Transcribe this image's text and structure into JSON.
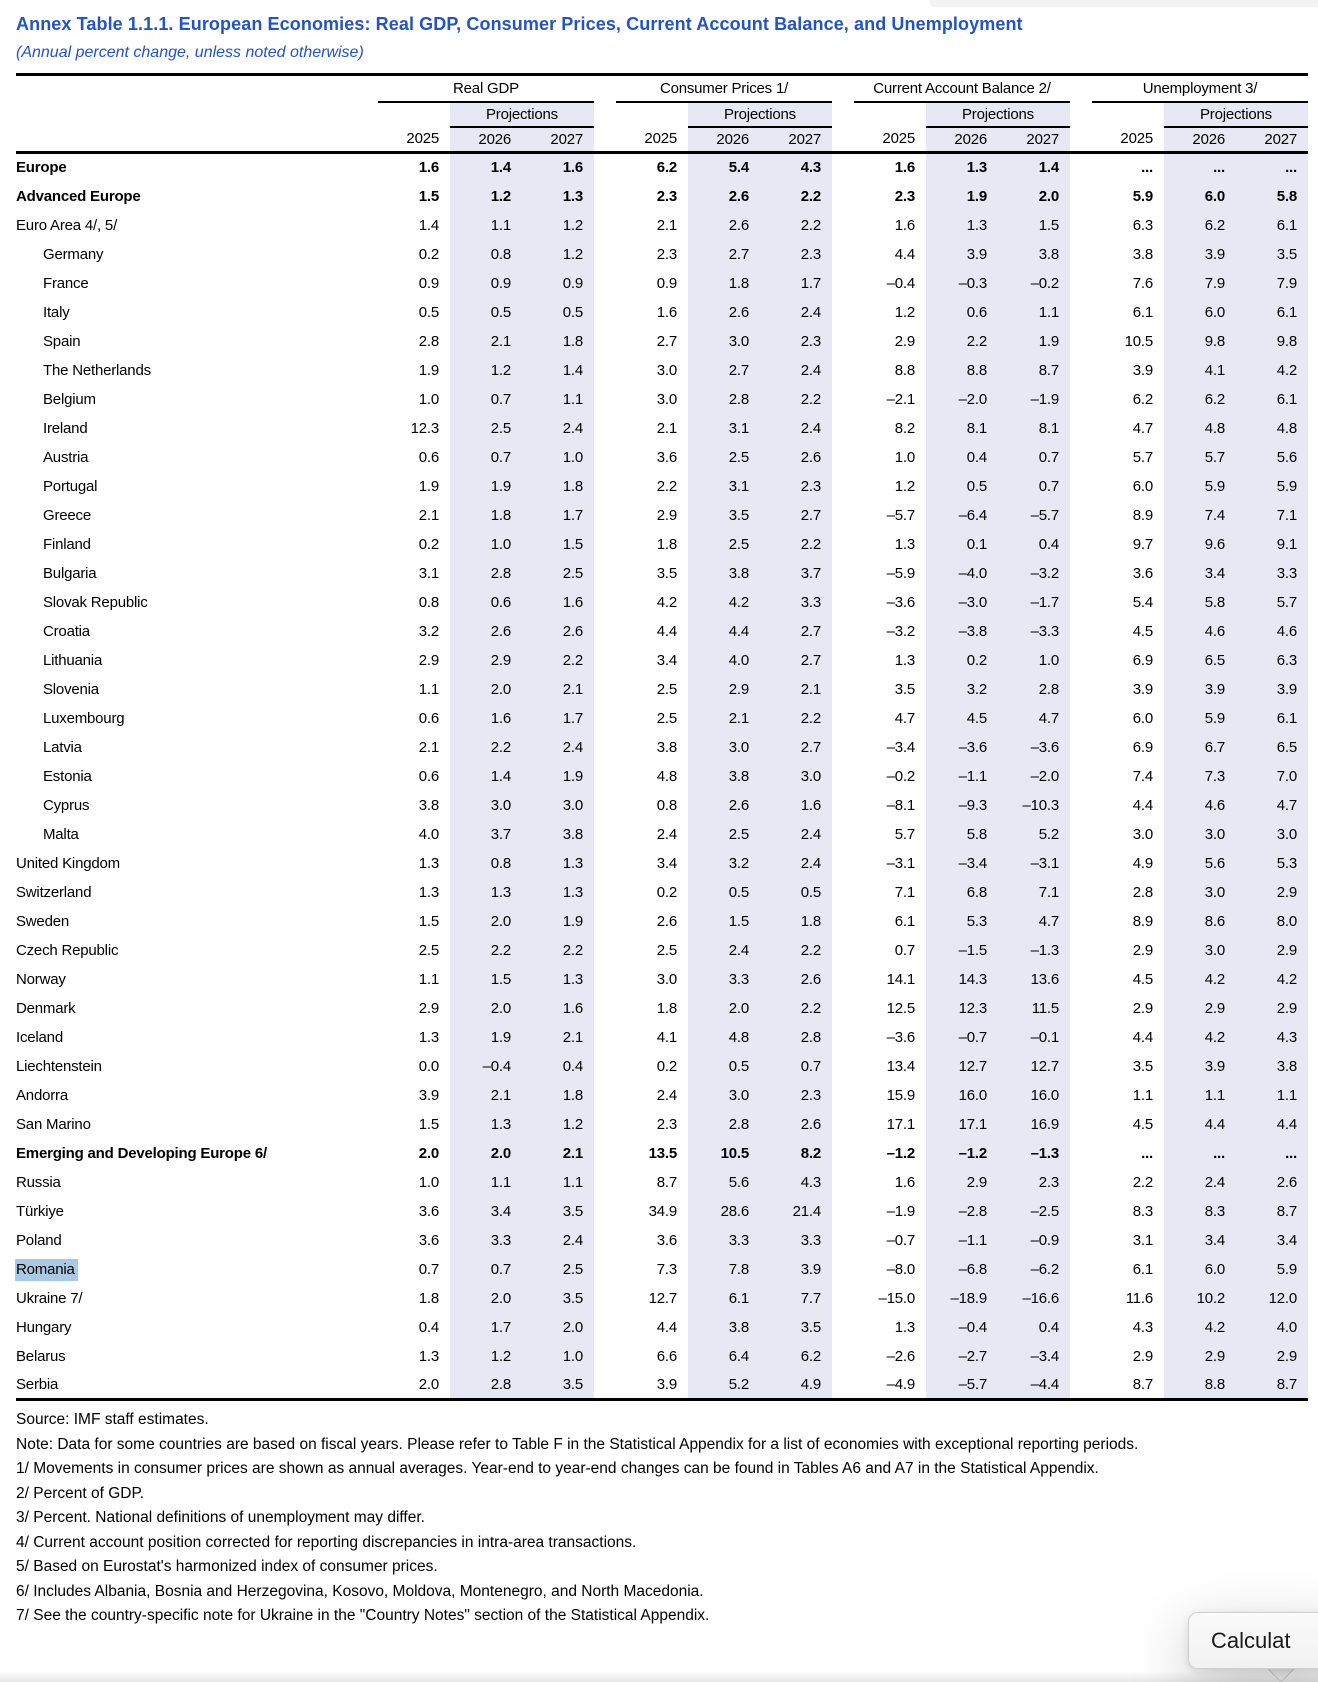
{
  "page": {
    "title": "Annex Table 1.1.1. European Economies: Real GDP, Consumer Prices, Current Account Balance, and Unemployment",
    "subtitle": "(Annual percent change, unless noted otherwise)"
  },
  "colors": {
    "title_blue": "#2353c4",
    "projection_band": "#e8e8f5",
    "selection_highlight": "#a9c9e5"
  },
  "table": {
    "column_groups": [
      "Real GDP",
      "Consumer Prices 1/",
      "Current Account Balance 2/",
      "Unemployment 3/"
    ],
    "projections_label": "Projections",
    "years": [
      "2025",
      "2026",
      "2027"
    ],
    "rows": [
      {
        "label": "Europe",
        "bold": true,
        "indent": 0,
        "values": [
          "1.6",
          "1.4",
          "1.6",
          "6.2",
          "5.4",
          "4.3",
          "1.6",
          "1.3",
          "1.4",
          "...",
          "...",
          "..."
        ]
      },
      {
        "label": "Advanced Europe",
        "bold": true,
        "indent": 0,
        "values": [
          "1.5",
          "1.2",
          "1.3",
          "2.3",
          "2.6",
          "2.2",
          "2.3",
          "1.9",
          "2.0",
          "5.9",
          "6.0",
          "5.8"
        ]
      },
      {
        "label": "Euro Area 4/, 5/",
        "bold": false,
        "indent": 0,
        "values": [
          "1.4",
          "1.1",
          "1.2",
          "2.1",
          "2.6",
          "2.2",
          "1.6",
          "1.3",
          "1.5",
          "6.3",
          "6.2",
          "6.1"
        ]
      },
      {
        "label": "Germany",
        "bold": false,
        "indent": 1,
        "values": [
          "0.2",
          "0.8",
          "1.2",
          "2.3",
          "2.7",
          "2.3",
          "4.4",
          "3.9",
          "3.8",
          "3.8",
          "3.9",
          "3.5"
        ]
      },
      {
        "label": "France",
        "bold": false,
        "indent": 1,
        "values": [
          "0.9",
          "0.9",
          "0.9",
          "0.9",
          "1.8",
          "1.7",
          "–0.4",
          "–0.3",
          "–0.2",
          "7.6",
          "7.9",
          "7.9"
        ]
      },
      {
        "label": "Italy",
        "bold": false,
        "indent": 1,
        "values": [
          "0.5",
          "0.5",
          "0.5",
          "1.6",
          "2.6",
          "2.4",
          "1.2",
          "0.6",
          "1.1",
          "6.1",
          "6.0",
          "6.1"
        ]
      },
      {
        "label": "Spain",
        "bold": false,
        "indent": 1,
        "values": [
          "2.8",
          "2.1",
          "1.8",
          "2.7",
          "3.0",
          "2.3",
          "2.9",
          "2.2",
          "1.9",
          "10.5",
          "9.8",
          "9.8"
        ]
      },
      {
        "label": "The Netherlands",
        "bold": false,
        "indent": 1,
        "values": [
          "1.9",
          "1.2",
          "1.4",
          "3.0",
          "2.7",
          "2.4",
          "8.8",
          "8.8",
          "8.7",
          "3.9",
          "4.1",
          "4.2"
        ]
      },
      {
        "label": "Belgium",
        "bold": false,
        "indent": 1,
        "values": [
          "1.0",
          "0.7",
          "1.1",
          "3.0",
          "2.8",
          "2.2",
          "–2.1",
          "–2.0",
          "–1.9",
          "6.2",
          "6.2",
          "6.1"
        ]
      },
      {
        "label": "Ireland",
        "bold": false,
        "indent": 1,
        "values": [
          "12.3",
          "2.5",
          "2.4",
          "2.1",
          "3.1",
          "2.4",
          "8.2",
          "8.1",
          "8.1",
          "4.7",
          "4.8",
          "4.8"
        ]
      },
      {
        "label": "Austria",
        "bold": false,
        "indent": 1,
        "values": [
          "0.6",
          "0.7",
          "1.0",
          "3.6",
          "2.5",
          "2.6",
          "1.0",
          "0.4",
          "0.7",
          "5.7",
          "5.7",
          "5.6"
        ]
      },
      {
        "label": "Portugal",
        "bold": false,
        "indent": 1,
        "values": [
          "1.9",
          "1.9",
          "1.8",
          "2.2",
          "3.1",
          "2.3",
          "1.2",
          "0.5",
          "0.7",
          "6.0",
          "5.9",
          "5.9"
        ]
      },
      {
        "label": "Greece",
        "bold": false,
        "indent": 1,
        "values": [
          "2.1",
          "1.8",
          "1.7",
          "2.9",
          "3.5",
          "2.7",
          "–5.7",
          "–6.4",
          "–5.7",
          "8.9",
          "7.4",
          "7.1"
        ]
      },
      {
        "label": "Finland",
        "bold": false,
        "indent": 1,
        "values": [
          "0.2",
          "1.0",
          "1.5",
          "1.8",
          "2.5",
          "2.2",
          "1.3",
          "0.1",
          "0.4",
          "9.7",
          "9.6",
          "9.1"
        ]
      },
      {
        "label": "Bulgaria",
        "bold": false,
        "indent": 1,
        "values": [
          "3.1",
          "2.8",
          "2.5",
          "3.5",
          "3.8",
          "3.7",
          "–5.9",
          "–4.0",
          "–3.2",
          "3.6",
          "3.4",
          "3.3"
        ]
      },
      {
        "label": "Slovak Republic",
        "bold": false,
        "indent": 1,
        "values": [
          "0.8",
          "0.6",
          "1.6",
          "4.2",
          "4.2",
          "3.3",
          "–3.6",
          "–3.0",
          "–1.7",
          "5.4",
          "5.8",
          "5.7"
        ]
      },
      {
        "label": "Croatia",
        "bold": false,
        "indent": 1,
        "values": [
          "3.2",
          "2.6",
          "2.6",
          "4.4",
          "4.4",
          "2.7",
          "–3.2",
          "–3.8",
          "–3.3",
          "4.5",
          "4.6",
          "4.6"
        ]
      },
      {
        "label": "Lithuania",
        "bold": false,
        "indent": 1,
        "values": [
          "2.9",
          "2.9",
          "2.2",
          "3.4",
          "4.0",
          "2.7",
          "1.3",
          "0.2",
          "1.0",
          "6.9",
          "6.5",
          "6.3"
        ]
      },
      {
        "label": "Slovenia",
        "bold": false,
        "indent": 1,
        "values": [
          "1.1",
          "2.0",
          "2.1",
          "2.5",
          "2.9",
          "2.1",
          "3.5",
          "3.2",
          "2.8",
          "3.9",
          "3.9",
          "3.9"
        ]
      },
      {
        "label": "Luxembourg",
        "bold": false,
        "indent": 1,
        "values": [
          "0.6",
          "1.6",
          "1.7",
          "2.5",
          "2.1",
          "2.2",
          "4.7",
          "4.5",
          "4.7",
          "6.0",
          "5.9",
          "6.1"
        ]
      },
      {
        "label": "Latvia",
        "bold": false,
        "indent": 1,
        "values": [
          "2.1",
          "2.2",
          "2.4",
          "3.8",
          "3.0",
          "2.7",
          "–3.4",
          "–3.6",
          "–3.6",
          "6.9",
          "6.7",
          "6.5"
        ]
      },
      {
        "label": "Estonia",
        "bold": false,
        "indent": 1,
        "values": [
          "0.6",
          "1.4",
          "1.9",
          "4.8",
          "3.8",
          "3.0",
          "–0.2",
          "–1.1",
          "–2.0",
          "7.4",
          "7.3",
          "7.0"
        ]
      },
      {
        "label": "Cyprus",
        "bold": false,
        "indent": 1,
        "values": [
          "3.8",
          "3.0",
          "3.0",
          "0.8",
          "2.6",
          "1.6",
          "–8.1",
          "–9.3",
          "–10.3",
          "4.4",
          "4.6",
          "4.7"
        ]
      },
      {
        "label": "Malta",
        "bold": false,
        "indent": 1,
        "values": [
          "4.0",
          "3.7",
          "3.8",
          "2.4",
          "2.5",
          "2.4",
          "5.7",
          "5.8",
          "5.2",
          "3.0",
          "3.0",
          "3.0"
        ]
      },
      {
        "label": "United Kingdom",
        "bold": false,
        "indent": 0,
        "values": [
          "1.3",
          "0.8",
          "1.3",
          "3.4",
          "3.2",
          "2.4",
          "–3.1",
          "–3.4",
          "–3.1",
          "4.9",
          "5.6",
          "5.3"
        ]
      },
      {
        "label": "Switzerland",
        "bold": false,
        "indent": 0,
        "values": [
          "1.3",
          "1.3",
          "1.3",
          "0.2",
          "0.5",
          "0.5",
          "7.1",
          "6.8",
          "7.1",
          "2.8",
          "3.0",
          "2.9"
        ]
      },
      {
        "label": "Sweden",
        "bold": false,
        "indent": 0,
        "values": [
          "1.5",
          "2.0",
          "1.9",
          "2.6",
          "1.5",
          "1.8",
          "6.1",
          "5.3",
          "4.7",
          "8.9",
          "8.6",
          "8.0"
        ]
      },
      {
        "label": "Czech Republic",
        "bold": false,
        "indent": 0,
        "values": [
          "2.5",
          "2.2",
          "2.2",
          "2.5",
          "2.4",
          "2.2",
          "0.7",
          "–1.5",
          "–1.3",
          "2.9",
          "3.0",
          "2.9"
        ]
      },
      {
        "label": "Norway",
        "bold": false,
        "indent": 0,
        "values": [
          "1.1",
          "1.5",
          "1.3",
          "3.0",
          "3.3",
          "2.6",
          "14.1",
          "14.3",
          "13.6",
          "4.5",
          "4.2",
          "4.2"
        ]
      },
      {
        "label": "Denmark",
        "bold": false,
        "indent": 0,
        "values": [
          "2.9",
          "2.0",
          "1.6",
          "1.8",
          "2.0",
          "2.2",
          "12.5",
          "12.3",
          "11.5",
          "2.9",
          "2.9",
          "2.9"
        ]
      },
      {
        "label": "Iceland",
        "bold": false,
        "indent": 0,
        "values": [
          "1.3",
          "1.9",
          "2.1",
          "4.1",
          "4.8",
          "2.8",
          "–3.6",
          "–0.7",
          "–0.1",
          "4.4",
          "4.2",
          "4.3"
        ]
      },
      {
        "label": "Liechtenstein",
        "bold": false,
        "indent": 0,
        "values": [
          "0.0",
          "–0.4",
          "0.4",
          "0.2",
          "0.5",
          "0.7",
          "13.4",
          "12.7",
          "12.7",
          "3.5",
          "3.9",
          "3.8"
        ]
      },
      {
        "label": "Andorra",
        "bold": false,
        "indent": 0,
        "values": [
          "3.9",
          "2.1",
          "1.8",
          "2.4",
          "3.0",
          "2.3",
          "15.9",
          "16.0",
          "16.0",
          "1.1",
          "1.1",
          "1.1"
        ]
      },
      {
        "label": "San Marino",
        "bold": false,
        "indent": 0,
        "values": [
          "1.5",
          "1.3",
          "1.2",
          "2.3",
          "2.8",
          "2.6",
          "17.1",
          "17.1",
          "16.9",
          "4.5",
          "4.4",
          "4.4"
        ]
      },
      {
        "label": "Emerging and Developing Europe 6/",
        "bold": true,
        "indent": 0,
        "values": [
          "2.0",
          "2.0",
          "2.1",
          "13.5",
          "10.5",
          "8.2",
          "–1.2",
          "–1.2",
          "–1.3",
          "...",
          "...",
          "..."
        ]
      },
      {
        "label": "Russia",
        "bold": false,
        "indent": 0,
        "values": [
          "1.0",
          "1.1",
          "1.1",
          "8.7",
          "5.6",
          "4.3",
          "1.6",
          "2.9",
          "2.3",
          "2.2",
          "2.4",
          "2.6"
        ]
      },
      {
        "label": "Türkiye",
        "bold": false,
        "indent": 0,
        "values": [
          "3.6",
          "3.4",
          "3.5",
          "34.9",
          "28.6",
          "21.4",
          "–1.9",
          "–2.8",
          "–2.5",
          "8.3",
          "8.3",
          "8.7"
        ]
      },
      {
        "label": "Poland",
        "bold": false,
        "indent": 0,
        "values": [
          "3.6",
          "3.3",
          "2.4",
          "3.6",
          "3.3",
          "3.3",
          "–0.7",
          "–1.1",
          "–0.9",
          "3.1",
          "3.4",
          "3.4"
        ]
      },
      {
        "label": "Romania",
        "bold": false,
        "indent": 0,
        "selected": true,
        "values": [
          "0.7",
          "0.7",
          "2.5",
          "7.3",
          "7.8",
          "3.9",
          "–8.0",
          "–6.8",
          "–6.2",
          "6.1",
          "6.0",
          "5.9"
        ]
      },
      {
        "label": "Ukraine 7/",
        "bold": false,
        "indent": 0,
        "values": [
          "1.8",
          "2.0",
          "3.5",
          "12.7",
          "6.1",
          "7.7",
          "–15.0",
          "–18.9",
          "–16.6",
          "11.6",
          "10.2",
          "12.0"
        ]
      },
      {
        "label": "Hungary",
        "bold": false,
        "indent": 0,
        "values": [
          "0.4",
          "1.7",
          "2.0",
          "4.4",
          "3.8",
          "3.5",
          "1.3",
          "–0.4",
          "0.4",
          "4.3",
          "4.2",
          "4.0"
        ]
      },
      {
        "label": "Belarus",
        "bold": false,
        "indent": 0,
        "values": [
          "1.3",
          "1.2",
          "1.0",
          "6.6",
          "6.4",
          "6.2",
          "–2.6",
          "–2.7",
          "–3.4",
          "2.9",
          "2.9",
          "2.9"
        ]
      },
      {
        "label": "Serbia",
        "bold": false,
        "indent": 0,
        "values": [
          "2.0",
          "2.8",
          "3.5",
          "3.9",
          "5.2",
          "4.9",
          "–4.9",
          "–5.7",
          "–4.4",
          "8.7",
          "8.8",
          "8.7"
        ]
      }
    ]
  },
  "footnotes": [
    "Source: IMF staff estimates.",
    "Note: Data for some countries are based on fiscal years. Please refer to Table F in the Statistical Appendix for a list of economies with exceptional reporting periods.",
    "1/ Movements in consumer prices are shown as annual averages. Year-end to year-end changes can be found in Tables A6 and A7 in the Statistical Appendix.",
    "2/ Percent of GDP.",
    "3/ Percent. National definitions of unemployment may differ.",
    "4/ Current account position corrected for reporting discrepancies in intra-area transactions.",
    "5/ Based on Eurostat's harmonized index of consumer prices.",
    "6/ Includes Albania, Bosnia and Herzegovina, Kosovo, Moldova, Montenegro, and North Macedonia.",
    "7/ See the country-specific note for Ukraine in the \"Country Notes\" section of the Statistical Appendix."
  ],
  "popup": {
    "label": "Calculat"
  }
}
